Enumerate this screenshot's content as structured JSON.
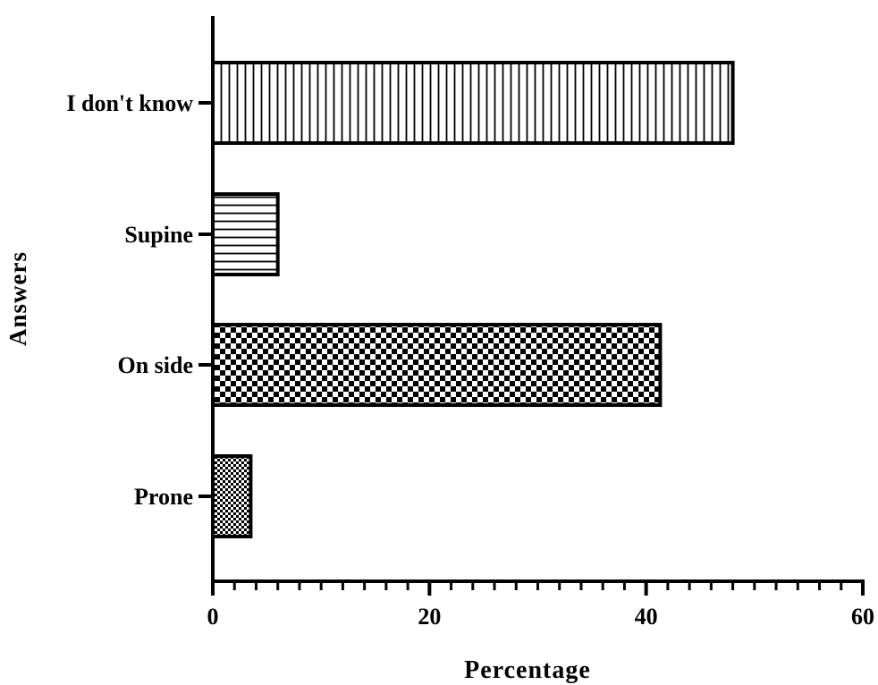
{
  "chart_data": {
    "type": "bar",
    "orientation": "horizontal",
    "title": "",
    "xlabel": "Percentage",
    "ylabel": "Answers",
    "categories": [
      "I don't know",
      "Supine",
      "On side",
      "Prone"
    ],
    "values": [
      48,
      6,
      41.3,
      3.5
    ],
    "xlim": [
      0,
      60
    ],
    "x_ticks": [
      "0",
      "20",
      "40",
      "60"
    ],
    "minor_tick_step": 2,
    "grid": false,
    "legend": "none",
    "patterns": [
      "vertical-lines",
      "horizontal-lines",
      "checkerboard-large",
      "checkerboard-small"
    ],
    "colors": {
      "ink": "#000000",
      "background": "#ffffff"
    }
  }
}
